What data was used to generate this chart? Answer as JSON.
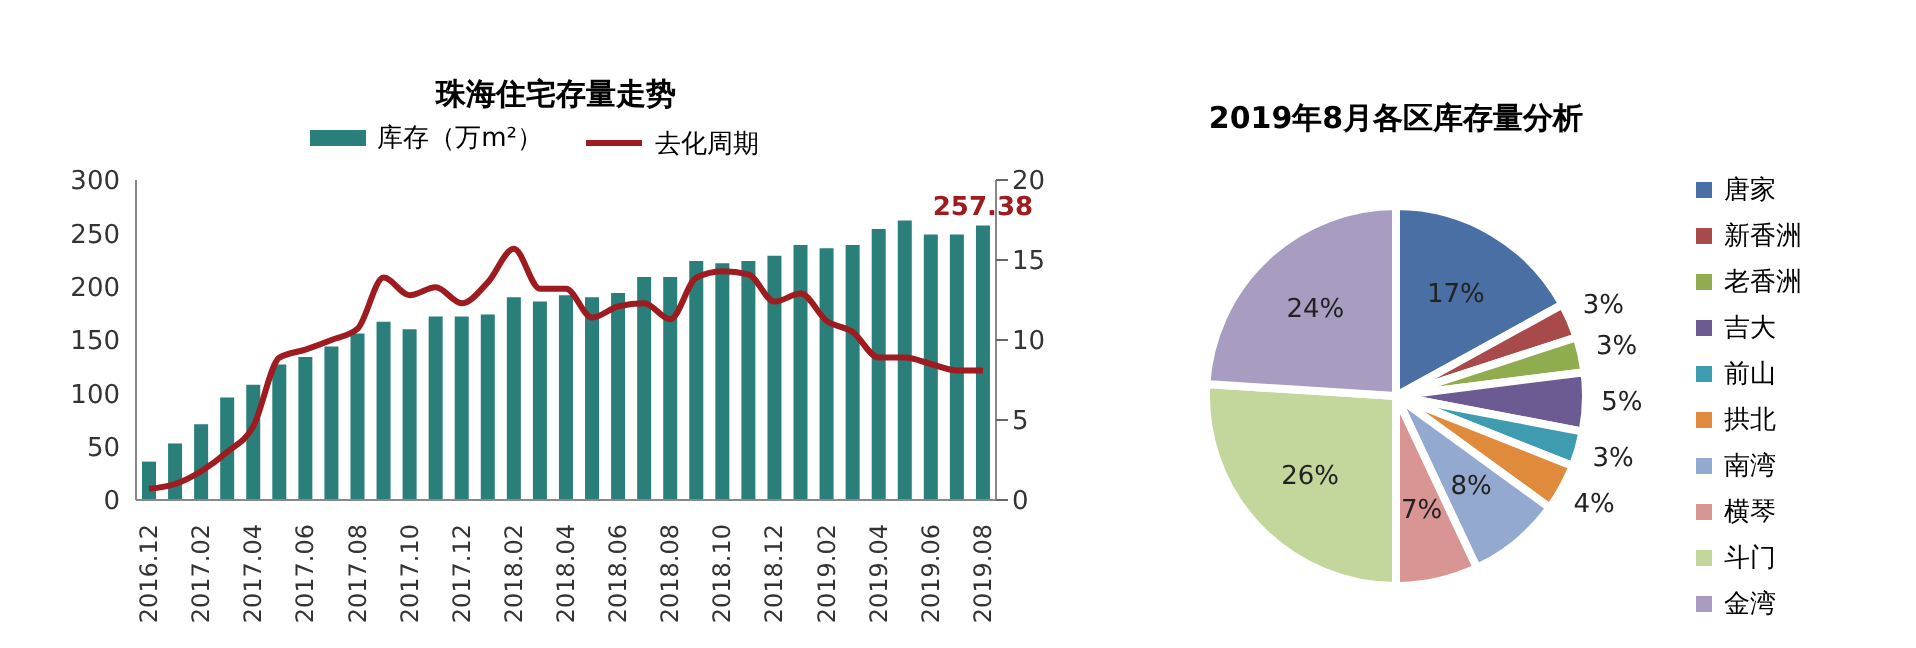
{
  "chart_data": [
    {
      "type": "bar",
      "title": "珠海住宅存量走势",
      "categories": [
        "2016.12",
        null,
        "2017.02",
        null,
        "2017.04",
        null,
        "2017.06",
        null,
        "2017.08",
        null,
        "2017.10",
        null,
        "2017.12",
        null,
        "2018.02",
        null,
        "2018.04",
        null,
        "2018.06",
        null,
        "2018.08",
        null,
        "2018.10",
        null,
        "2018.12",
        null,
        "2019.02",
        null,
        "2019.04",
        null,
        "2019.06",
        null,
        "2019.08"
      ],
      "series": [
        {
          "name": "库存（万m²）",
          "type": "bar",
          "color": "#2a7f7a",
          "values": [
            36,
            53,
            71,
            96,
            108,
            127,
            134,
            144,
            156,
            167,
            160,
            172,
            172,
            174,
            190,
            186,
            192,
            190,
            194,
            209,
            209,
            224,
            222,
            224,
            229,
            239,
            236,
            239,
            254,
            262,
            249,
            249,
            257.38
          ],
          "value_labels": [
            null,
            null,
            null,
            null,
            null,
            null,
            null,
            null,
            null,
            null,
            null,
            null,
            null,
            null,
            null,
            null,
            null,
            null,
            null,
            null,
            null,
            null,
            null,
            null,
            null,
            null,
            null,
            null,
            null,
            null,
            null,
            null,
            "257.38"
          ]
        },
        {
          "name": "去化周期",
          "type": "line",
          "axis": "y2",
          "color": "#9e1b20",
          "values": [
            0.7,
            1.0,
            1.8,
            3.0,
            4.6,
            8.9,
            9.4,
            10.0,
            10.7,
            13.9,
            12.8,
            13.3,
            12.3,
            13.6,
            15.7,
            13.2,
            13.2,
            11.4,
            12.1,
            12.3,
            11.3,
            13.9,
            14.3,
            14.1,
            12.4,
            12.9,
            11.2,
            10.5,
            8.9,
            8.9,
            8.5,
            8.1,
            8.1
          ]
        }
      ],
      "ylim": [
        0,
        300
      ],
      "yticks": [
        0,
        50,
        100,
        150,
        200,
        250,
        300
      ],
      "y2lim": [
        0,
        20
      ],
      "y2ticks": [
        0,
        5,
        10,
        15,
        20
      ],
      "legend": "top",
      "marker": "none",
      "line_style": "solid"
    },
    {
      "type": "pie",
      "title": "2019年8月各区库存量分析",
      "categories": [
        "唐家",
        "新香洲",
        "老香洲",
        "吉大",
        "前山",
        "拱北",
        "南湾",
        "横琴",
        "斗门",
        "金湾"
      ],
      "values": [
        17,
        3,
        3,
        5,
        3,
        4,
        8,
        7,
        26,
        24
      ],
      "value_labels": [
        "17%",
        "3%",
        "3%",
        "5%",
        "3%",
        "4%",
        "8%",
        "7%",
        "26%",
        "24%"
      ],
      "colors": [
        "#4a6fa5",
        "#a94a4a",
        "#8fad4e",
        "#6c5a92",
        "#3f9bb0",
        "#e08a3c",
        "#93a9d0",
        "#d99594",
        "#c3d69b",
        "#a89cc0"
      ],
      "legend": "right"
    }
  ]
}
